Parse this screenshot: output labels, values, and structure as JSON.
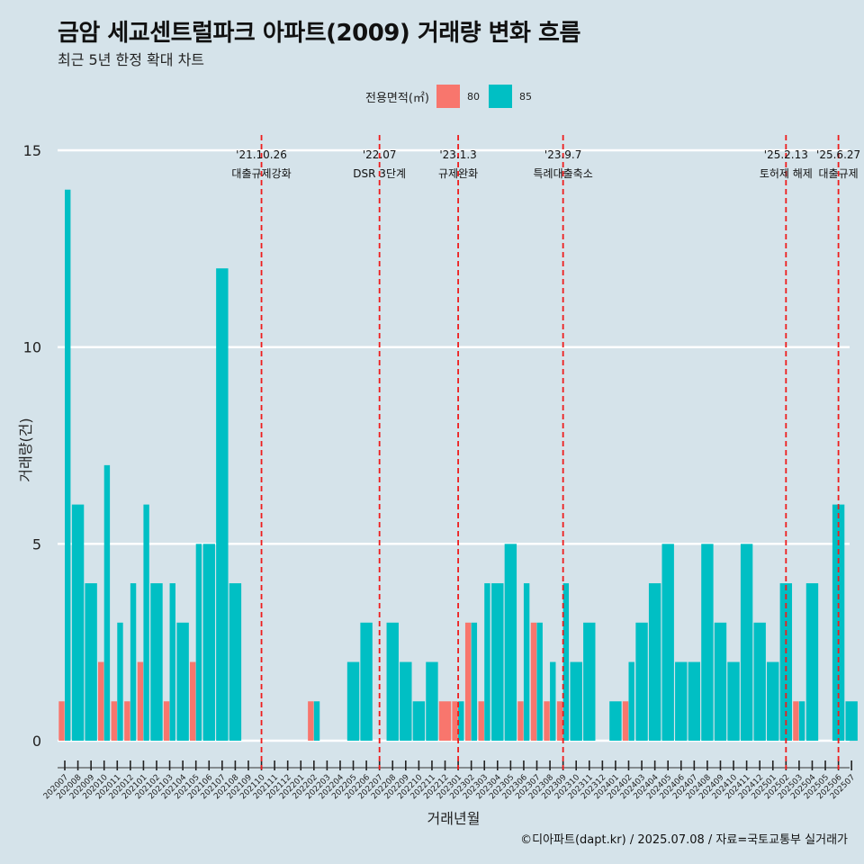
{
  "title": "금암 세교센트럴파크 아파트(2009) 거래량 변화 흐름",
  "subtitle": "최근 5년 한정 확대 차트",
  "credit": "©디아파트(dapt.kr) / 2025.07.08 / 자료=국토교통부 실거래가",
  "legend": {
    "title": "전용면적(㎡)",
    "items": [
      {
        "label": "80",
        "color": "#f8766d"
      },
      {
        "label": "85",
        "color": "#00bfc4"
      }
    ]
  },
  "chart_data": {
    "type": "bar",
    "xlabel": "거래년월",
    "ylabel": "거래량(건)",
    "ylim": [
      0,
      15
    ],
    "yticks": [
      0,
      5,
      10,
      15
    ],
    "grid": true,
    "legend_position": "top",
    "categories": [
      "202007",
      "202008",
      "202009",
      "202010",
      "202011",
      "202012",
      "202101",
      "202102",
      "202103",
      "202104",
      "202105",
      "202106",
      "202107",
      "202108",
      "202109",
      "202110",
      "202111",
      "202112",
      "202201",
      "202202",
      "202203",
      "202204",
      "202205",
      "202206",
      "202207",
      "202208",
      "202209",
      "202210",
      "202211",
      "202212",
      "202301",
      "202302",
      "202303",
      "202304",
      "202305",
      "202306",
      "202307",
      "202308",
      "202309",
      "202310",
      "202311",
      "202312",
      "202401",
      "202402",
      "202403",
      "202404",
      "202405",
      "202406",
      "202407",
      "202408",
      "202409",
      "202410",
      "202411",
      "202412",
      "202501",
      "202502",
      "202503",
      "202504",
      "202505",
      "202506",
      "202507"
    ],
    "series": [
      {
        "name": "80",
        "color": "#f8766d",
        "values": [
          1,
          0,
          0,
          2,
          1,
          1,
          2,
          0,
          1,
          0,
          2,
          0,
          0,
          0,
          0,
          0,
          0,
          0,
          0,
          1,
          0,
          0,
          0,
          0,
          0,
          0,
          0,
          0,
          0,
          1,
          1,
          3,
          1,
          0,
          0,
          1,
          3,
          1,
          1,
          0,
          0,
          0,
          0,
          1,
          0,
          0,
          0,
          0,
          0,
          0,
          0,
          0,
          0,
          0,
          0,
          0,
          1,
          0,
          0,
          0,
          0
        ]
      },
      {
        "name": "85",
        "color": "#00bfc4",
        "values": [
          14,
          6,
          4,
          7,
          3,
          4,
          6,
          4,
          4,
          3,
          5,
          5,
          12,
          4,
          0,
          0,
          0,
          0,
          0,
          1,
          0,
          0,
          2,
          3,
          0,
          3,
          2,
          1,
          2,
          0,
          1,
          3,
          4,
          4,
          5,
          4,
          3,
          2,
          4,
          2,
          3,
          0,
          1,
          2,
          3,
          4,
          5,
          2,
          2,
          5,
          3,
          2,
          5,
          3,
          2,
          4,
          1,
          4,
          0,
          6,
          1
        ]
      }
    ],
    "events": [
      {
        "date": "202110",
        "label_top": "'21.10.26",
        "label_bottom": "대출규제강화"
      },
      {
        "date": "202207",
        "label_top": "'22.07",
        "label_bottom": "DSR 3단계"
      },
      {
        "date": "202301",
        "label_top": "'23.1.3",
        "label_bottom": "규제완화"
      },
      {
        "date": "202309",
        "label_top": "'23.9.7",
        "label_bottom": "특례대출축소"
      },
      {
        "date": "202502",
        "label_top": "'25.2.13",
        "label_bottom": "토허제 해제"
      },
      {
        "date": "202506",
        "label_top": "'25.6.27",
        "label_bottom": "대출규제"
      }
    ]
  }
}
